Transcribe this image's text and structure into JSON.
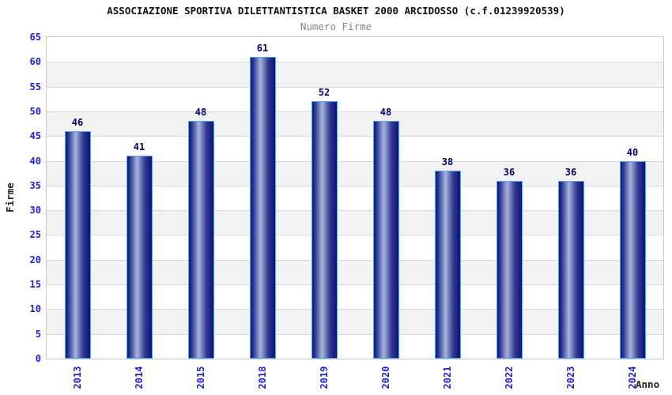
{
  "chart_data": {
    "type": "bar",
    "title": "ASSOCIAZIONE SPORTIVA DILETTANTISTICA BASKET 2000 ARCIDOSSO (c.f.01239920539)",
    "subtitle": "Numero Firme",
    "xlabel": "Anno",
    "ylabel": "Firme",
    "categories": [
      "2013",
      "2014",
      "2015",
      "2018",
      "2019",
      "2020",
      "2021",
      "2022",
      "2023",
      "2024"
    ],
    "values": [
      46,
      41,
      48,
      61,
      52,
      48,
      38,
      36,
      36,
      40
    ],
    "ylim": [
      0,
      65
    ],
    "ytick_step": 5,
    "grid": "horizontal",
    "legend": "none",
    "colors": {
      "title": "#111111",
      "subtitle": "#858585",
      "tick_label": "#2121d4",
      "value_label": "#000070",
      "axis_title": "#222222",
      "bar_dark": "#12126e",
      "bar_mid": "#2e3a94",
      "bar_light": "#a9b3da",
      "bar_border": "#5ba3f5",
      "band_gray": "#f2f2f2",
      "band_white": "#ffffff",
      "gridline": "#d8d8d8",
      "plot_border": "#c8c8c8",
      "background": "#ffffff"
    }
  }
}
